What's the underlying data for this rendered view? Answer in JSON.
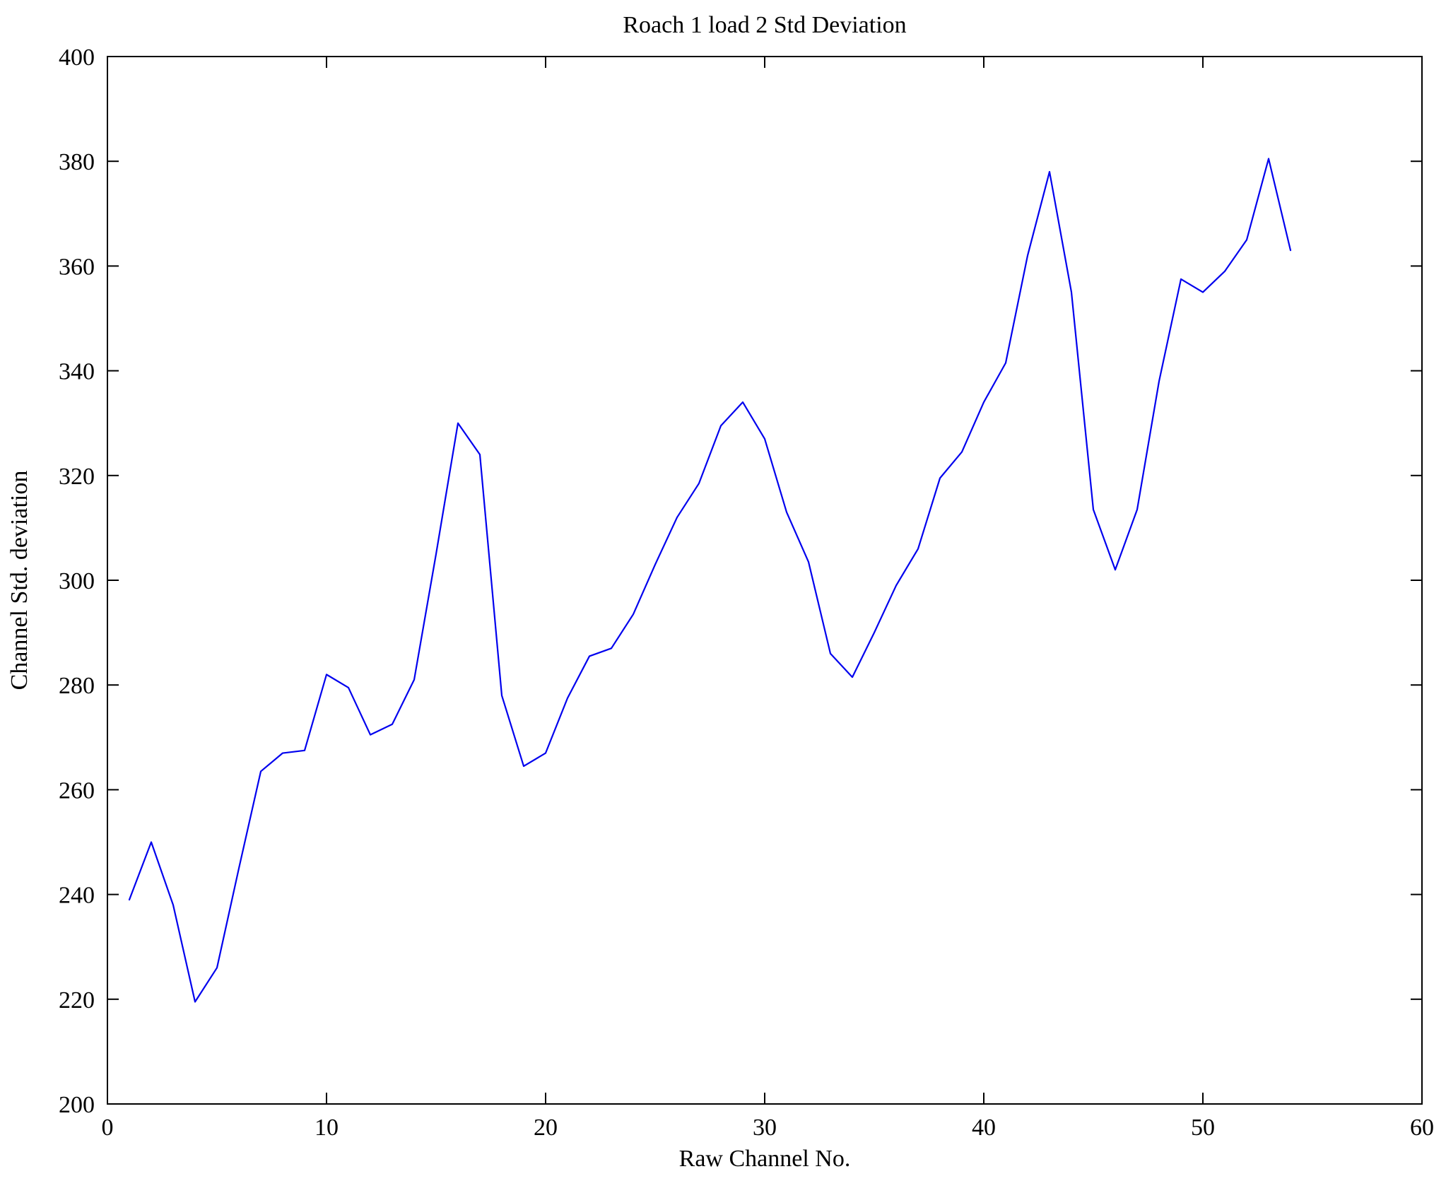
{
  "chart_data": {
    "type": "line",
    "title": "Roach 1 load 2 Std Deviation",
    "xlabel": "Raw Channel No.",
    "ylabel": "Channel Std. deviation",
    "xlim": [
      0,
      60
    ],
    "ylim": [
      200,
      400
    ],
    "xticks": [
      0,
      10,
      20,
      30,
      40,
      50,
      60
    ],
    "yticks": [
      200,
      220,
      240,
      260,
      280,
      300,
      320,
      340,
      360,
      380,
      400
    ],
    "grid": false,
    "legend": "none",
    "line_color": "#0000EE",
    "x": [
      1,
      2,
      3,
      4,
      5,
      6,
      7,
      8,
      9,
      10,
      11,
      12,
      13,
      14,
      15,
      16,
      17,
      18,
      19,
      20,
      21,
      22,
      23,
      24,
      25,
      26,
      27,
      28,
      29,
      30,
      31,
      32,
      33,
      34,
      35,
      36,
      37,
      38,
      39,
      40,
      41,
      42,
      43,
      44,
      45,
      46,
      47,
      48,
      49,
      50,
      51,
      52,
      53,
      54
    ],
    "values": [
      239,
      250,
      238,
      219.5,
      226,
      245,
      263.5,
      267,
      267.5,
      282,
      279.5,
      270.5,
      272.5,
      281,
      305,
      330,
      324,
      278,
      264.5,
      267,
      277.5,
      285.5,
      287,
      293.5,
      303,
      312,
      318.5,
      329.5,
      334,
      327,
      313,
      303.5,
      286,
      281.5,
      290,
      299,
      306,
      319.5,
      324.5,
      334,
      341.5,
      362,
      378,
      355,
      313.5,
      302,
      313.5,
      338,
      357.5,
      355,
      359,
      365,
      380.5,
      363
    ]
  }
}
